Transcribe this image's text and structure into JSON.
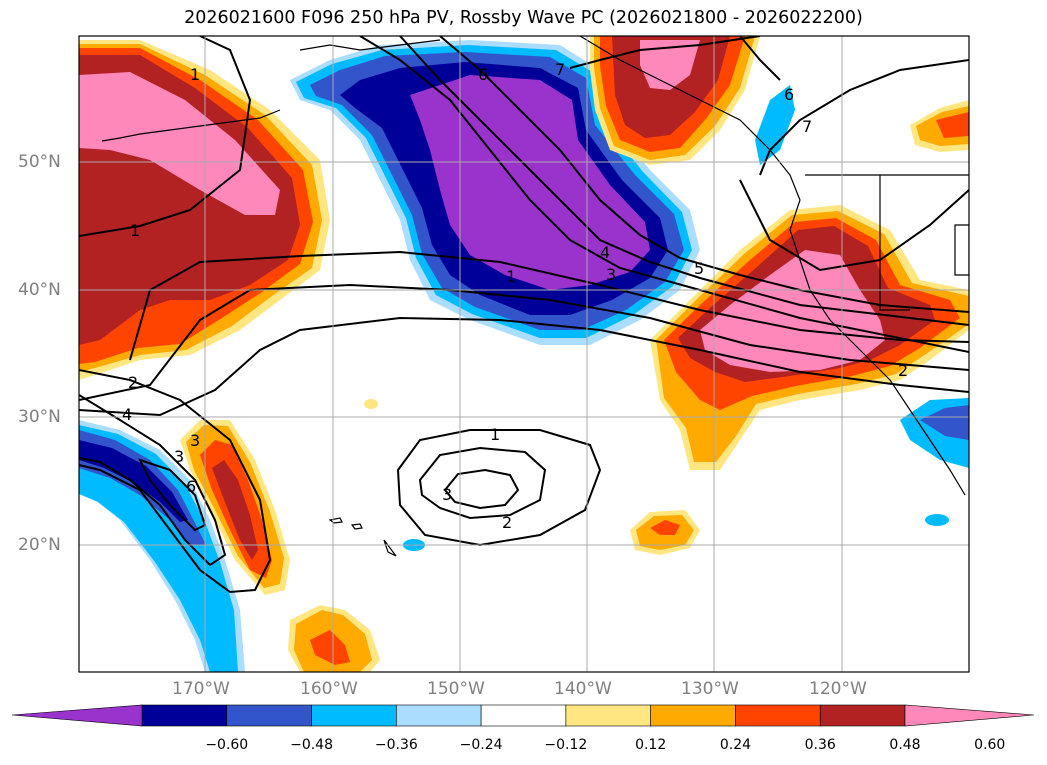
{
  "title": "2026021600 F096 250 hPa PV, Rossby Wave PC (2026021800 - 2026022200)",
  "lat_labels": [
    "50°N",
    "40°N",
    "30°N",
    "20°N"
  ],
  "lon_labels": [
    "170°W",
    "160°W",
    "150°W",
    "140°W",
    "130°W",
    "120°W"
  ],
  "colorbar": {
    "colors": [
      "#9933cc",
      "#000099",
      "#3355cc",
      "#00bbff",
      "#aaddff",
      "#ffffff",
      "#ffe680",
      "#ffaa00",
      "#ff4400",
      "#b22222",
      "#ff88bb"
    ],
    "ticks": [
      "−0.60",
      "−0.48",
      "−0.36",
      "−0.24",
      "−0.12",
      "0.12",
      "0.24",
      "0.36",
      "0.48",
      "0.60"
    ]
  },
  "contour_labels": [
    "7",
    "6",
    "6",
    "7",
    "1",
    "4",
    "3",
    "1",
    "5",
    "1",
    "2",
    "4",
    "3",
    "3",
    "6",
    "1",
    "3",
    "2",
    "2"
  ]
}
